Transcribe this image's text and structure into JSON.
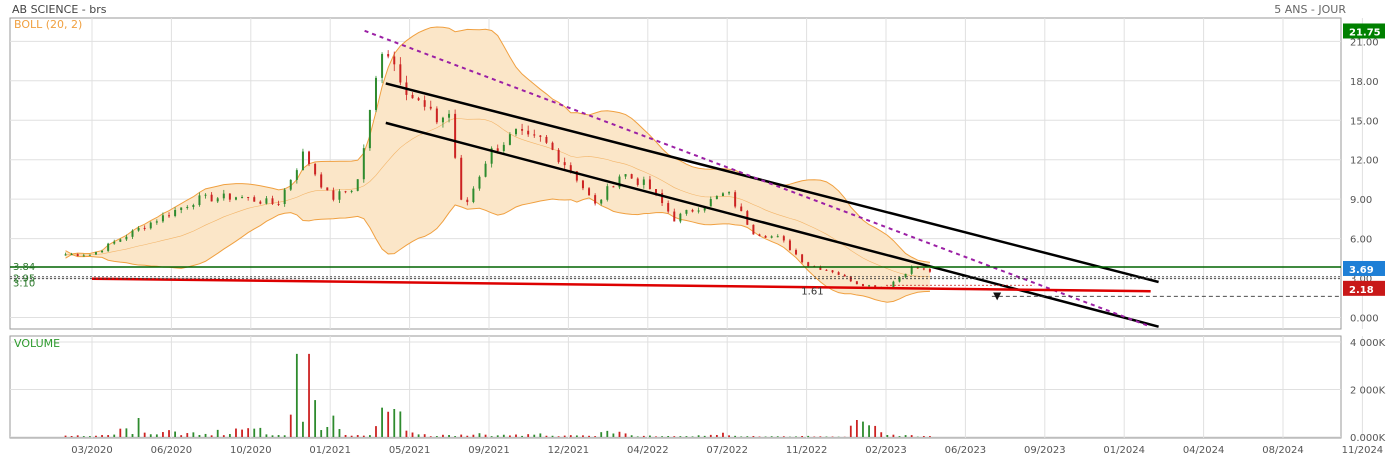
{
  "header": {
    "title": "AB SCIENCE - brs",
    "period": "5 ANS - JOUR",
    "indicator": "BOLL (20, 2)"
  },
  "chart_data": [
    {
      "type": "line",
      "panel": "price",
      "title": "AB SCIENCE - brs",
      "y_ticks": [
        "0.000",
        "3.00",
        "6.00",
        "9.00",
        "12.00",
        "15.00",
        "18.00",
        "21.00"
      ],
      "ylim": [
        -0.5,
        22.5
      ],
      "x_ticks": [
        "03/2020",
        "06/2020",
        "10/2020",
        "01/2021",
        "05/2021",
        "09/2021",
        "12/2021",
        "04/2022",
        "07/2022",
        "11/2022",
        "02/2023",
        "06/2023",
        "09/2023",
        "01/2024",
        "04/2024",
        "08/2024",
        "11/2024"
      ],
      "series": [
        {
          "name": "",
          "x": [
            0,
            2,
            4,
            5.5,
            7,
            8,
            9,
            10,
            11,
            12,
            13,
            13.5,
            14,
            15,
            16,
            16.5,
            17,
            17.5,
            18.2,
            19,
            20,
            21,
            22,
            23,
            24,
            25,
            26,
            27,
            28,
            29,
            30,
            31,
            31.7
          ],
          "values": [
            4.8,
            7.0,
            9.0,
            9.2,
            8.6,
            12.5,
            9.0,
            10.0,
            21.0,
            17.0,
            15.0,
            15.5,
            8.0,
            12.5,
            14.0,
            13.5,
            13.5,
            12.5,
            11.0,
            8.5,
            11.0,
            10.0,
            7.5,
            8.5,
            9.5,
            6.5,
            6.0,
            4.0,
            3.5,
            2.5,
            2.3,
            3.84,
            3.5
          ]
        }
      ],
      "bollinger": {
        "name": "BOLL (20, 2)",
        "color": "#f0a040"
      },
      "trend_lines": [
        {
          "kind": "channel-top",
          "x": [
            11.1,
            40.3
          ],
          "y": [
            17.8,
            2.7
          ],
          "color": "#000000"
        },
        {
          "kind": "channel-bottom",
          "x": [
            11.1,
            40.3
          ],
          "y": [
            14.8,
            -0.7
          ],
          "color": "#000000"
        },
        {
          "kind": "dashed-resistance",
          "x": [
            10.3,
            40.0
          ],
          "y": [
            21.8,
            -0.7
          ],
          "color": "#9b1fa5"
        },
        {
          "kind": "support",
          "x": [
            0.0,
            40.0
          ],
          "y": [
            2.95,
            2.0
          ],
          "color": "#dd0000"
        },
        {
          "kind": "horizontal",
          "x": [
            0,
            50
          ],
          "y": [
            3.84,
            3.84
          ],
          "color": "#006400"
        }
      ],
      "price_labels": [
        {
          "text": "21.75",
          "value": 21.75,
          "color": "#008000"
        },
        {
          "text": "3.69",
          "value": 3.69,
          "color": "#1e7fd6"
        },
        {
          "text": "2.18",
          "value": 2.18,
          "color": "#c81818"
        }
      ],
      "left_labels": [
        {
          "text": "3.84",
          "value": 3.84
        },
        {
          "text": "2.95",
          "value": 2.95
        },
        {
          "text": "3.10",
          "value": 3.1
        }
      ],
      "annotations": [
        {
          "text": "1.61",
          "value": 1.61
        }
      ],
      "colors": {
        "up": "#2e8b2e",
        "down": "#cc2222",
        "band_fill": "#fbe6c8",
        "grid": "#e0e0e0"
      }
    },
    {
      "type": "bar",
      "panel": "volume",
      "title": "VOLUME",
      "y_ticks": [
        "0.000K",
        "2 000K",
        "4 000K"
      ],
      "ylim": [
        0,
        4000
      ],
      "values": [
        200,
        350,
        800,
        600,
        400,
        300,
        900,
        350,
        3500,
        900,
        200,
        2500,
        600,
        200,
        350,
        200,
        250,
        150,
        200,
        700,
        150,
        100,
        150,
        180,
        120,
        80,
        100,
        60,
        1500,
        200,
        80
      ],
      "unit": "K"
    }
  ]
}
